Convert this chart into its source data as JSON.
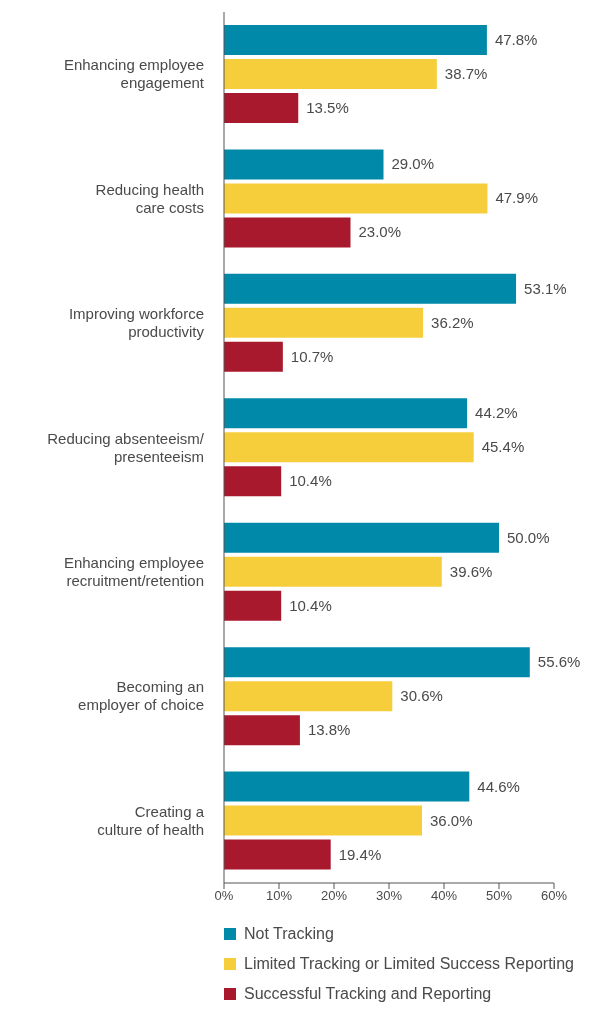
{
  "chart_data": {
    "type": "bar",
    "orientation": "horizontal",
    "categories": [
      "Enhancing employee engagement",
      "Reducing health care costs",
      "Improving workforce productivity",
      "Reducing absenteeism/presenteeism",
      "Enhancing employee recruitment/retention",
      "Becoming an employer of choice",
      "Creating a culture of health"
    ],
    "series": [
      {
        "name": "Not Tracking",
        "color": "#0089a8",
        "values": [
          47.8,
          29.0,
          53.1,
          44.2,
          50.0,
          55.6,
          44.6
        ],
        "value_labels": [
          "47.8%",
          "29.0%",
          "53.1%",
          "44.2%",
          "50.0%",
          "55.6%",
          "44.6%"
        ]
      },
      {
        "name": "Limited Tracking or Limited Success Reporting",
        "color": "#f6ce3c",
        "values": [
          38.7,
          47.9,
          36.2,
          45.4,
          39.6,
          30.6,
          36.0
        ],
        "value_labels": [
          "38.7%",
          "47.9%",
          "36.2%",
          "45.4%",
          "39.6%",
          "30.6%",
          "36.0%"
        ]
      },
      {
        "name": "Successful Tracking and Reporting",
        "color": "#a8192e",
        "values": [
          13.5,
          23.0,
          10.7,
          10.4,
          10.4,
          13.8,
          19.4
        ],
        "value_labels": [
          "13.5%",
          "23.0%",
          "10.7%",
          "10.4%",
          "10.4%",
          "13.8%",
          "19.4%"
        ]
      }
    ],
    "xlim": [
      0,
      60
    ],
    "xticks": [
      {
        "value": 0,
        "label": "0%"
      },
      {
        "value": 10,
        "label": "10%"
      },
      {
        "value": 20,
        "label": "20%"
      },
      {
        "value": 30,
        "label": "30%"
      },
      {
        "value": 40,
        "label": "40%"
      },
      {
        "value": 50,
        "label": "50%"
      },
      {
        "value": 60,
        "label": "60%"
      }
    ],
    "grid": false,
    "legend": "bottom"
  }
}
